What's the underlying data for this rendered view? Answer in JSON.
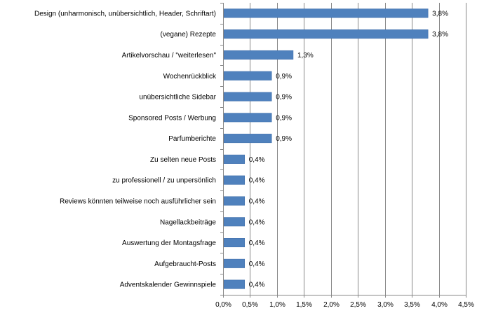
{
  "chart_data": {
    "type": "bar",
    "orientation": "horizontal",
    "categories": [
      "Design (unharmonisch, unübersichtlich, Header, Schriftart)",
      "(vegane) Rezepte",
      "Artikelvorschau / \"weiterlesen\"",
      "Wochenrückblick",
      "unübersichtliche Sidebar",
      "Sponsored Posts / Werbung",
      "Parfumberichte",
      "Zu selten neue Posts",
      "zu professionell / zu unpersönlich",
      "Reviews könnten teilweise noch ausführlicher sein",
      "Nagellackbeiträge",
      "Auswertung der Montagsfrage",
      "Aufgebraucht-Posts",
      "Adventskalender Gewinnspiele"
    ],
    "values": [
      3.8,
      3.8,
      1.3,
      0.9,
      0.9,
      0.9,
      0.9,
      0.4,
      0.4,
      0.4,
      0.4,
      0.4,
      0.4,
      0.4
    ],
    "value_labels": [
      "3,8%",
      "3,8%",
      "1,3%",
      "0,9%",
      "0,9%",
      "0,9%",
      "0,9%",
      "0,4%",
      "0,4%",
      "0,4%",
      "0,4%",
      "0,4%",
      "0,4%",
      "0,4%"
    ],
    "x_ticks": [
      0,
      0.5,
      1,
      1.5,
      2,
      2.5,
      3,
      3.5,
      4,
      4.5
    ],
    "x_tick_labels": [
      "0,0%",
      "0,5%",
      "1,0%",
      "1,5%",
      "2,0%",
      "2,5%",
      "3,0%",
      "3,5%",
      "4,0%",
      "4,5%"
    ],
    "xlim": [
      0,
      4.5
    ],
    "grid": "vertical",
    "bar_color": "#4f81bd",
    "title": "",
    "xlabel": "",
    "ylabel": ""
  }
}
